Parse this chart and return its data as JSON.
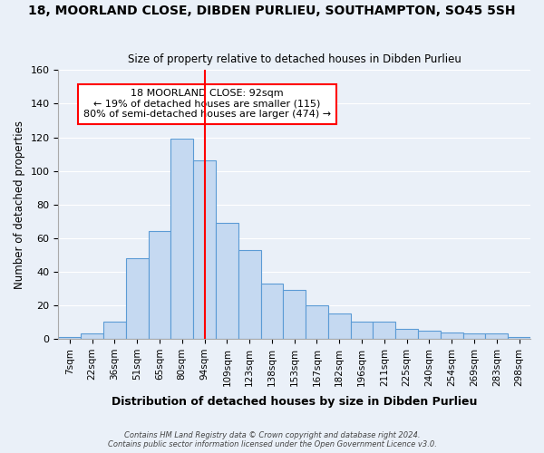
{
  "title": "18, MOORLAND CLOSE, DIBDEN PURLIEU, SOUTHAMPTON, SO45 5SH",
  "subtitle": "Size of property relative to detached houses in Dibden Purlieu",
  "xlabel": "Distribution of detached houses by size in Dibden Purlieu",
  "ylabel": "Number of detached properties",
  "bar_labels": [
    "7sqm",
    "22sqm",
    "36sqm",
    "51sqm",
    "65sqm",
    "80sqm",
    "94sqm",
    "109sqm",
    "123sqm",
    "138sqm",
    "153sqm",
    "167sqm",
    "182sqm",
    "196sqm",
    "211sqm",
    "225sqm",
    "240sqm",
    "254sqm",
    "269sqm",
    "283sqm",
    "298sqm"
  ],
  "bar_heights": [
    1,
    3,
    10,
    48,
    64,
    119,
    106,
    69,
    53,
    33,
    29,
    20,
    15,
    10,
    10,
    6,
    5,
    4,
    3,
    3,
    1
  ],
  "bar_color": "#c5d9f1",
  "bar_edge_color": "#5b9bd5",
  "vline_x": 6,
  "vline_color": "red",
  "annotation_title": "18 MOORLAND CLOSE: 92sqm",
  "annotation_line1": "← 19% of detached houses are smaller (115)",
  "annotation_line2": "80% of semi-detached houses are larger (474) →",
  "box_facecolor": "white",
  "box_edgecolor": "red",
  "ylim": [
    0,
    160
  ],
  "yticks": [
    0,
    20,
    40,
    60,
    80,
    100,
    120,
    140,
    160
  ],
  "footer1": "Contains HM Land Registry data © Crown copyright and database right 2024.",
  "footer2": "Contains public sector information licensed under the Open Government Licence v3.0.",
  "bg_color": "#eaf0f8"
}
